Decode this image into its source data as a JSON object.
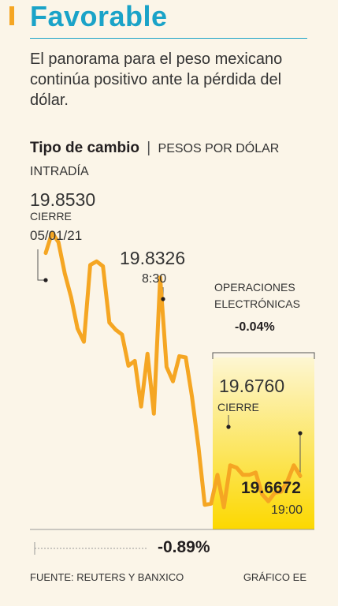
{
  "header": {
    "title": "Favorable",
    "subtitle": "El panorama para el peso mexicano continúa positivo ante la pérdida del dólar."
  },
  "chart_title": {
    "main": "Tipo de cambio",
    "separator": "|",
    "unit": "PESOS POR DÓLAR INTRADÍA"
  },
  "annotations": {
    "open_value": "19.8530",
    "open_label_1": "CIERRE",
    "open_label_2": "05/01/21",
    "peak_value": "19.8326",
    "peak_time": "8:30",
    "ops_label_1": "OPERACIONES",
    "ops_label_2": "ELECTRÓNICAS",
    "ops_change": "-0.04%",
    "close_value": "19.6760",
    "close_label": "CIERRE",
    "last_value": "19.6672",
    "last_time": "19:00",
    "total_change": "-0.89%"
  },
  "footer": {
    "source": "FUENTE: REUTERS Y BANXICO",
    "credit": "GRÁFICO EE"
  },
  "colors": {
    "title": "#1aa3c8",
    "accent": "#f5a623",
    "line": "#f5a623",
    "highlight_top": "#fdf6d2",
    "highlight_bottom": "#fcd800"
  },
  "chart_data": {
    "type": "line",
    "title": "Tipo de cambio",
    "subtitle": "PESOS POR DÓLAR INTRADÍA",
    "ylim": [
      19.61,
      19.86
    ],
    "grid": false,
    "highlight_region": {
      "label": "OPERACIONES ELECTRÓNICAS",
      "change": "-0.04%",
      "start_index": 30
    },
    "series": [
      {
        "values": [
          19.853,
          19.87,
          19.862,
          19.836,
          19.816,
          19.79,
          19.779,
          19.843,
          19.846,
          19.842,
          19.795,
          19.789,
          19.785,
          19.759,
          19.763,
          19.725,
          19.769,
          19.719,
          19.8326,
          19.758,
          19.746,
          19.767,
          19.766,
          19.733,
          19.692,
          19.643,
          19.644,
          19.668,
          19.641,
          19.676,
          19.674,
          19.668,
          19.668,
          19.67,
          19.652,
          19.646,
          19.653,
          19.654,
          19.663,
          19.676,
          19.6672
        ]
      }
    ]
  }
}
